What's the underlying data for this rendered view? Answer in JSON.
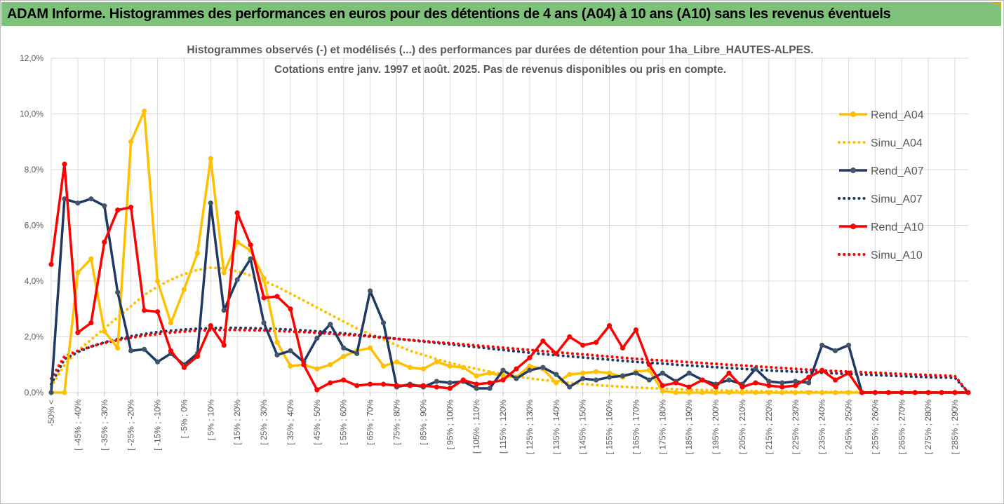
{
  "banner": {
    "title": "ADAM Informe. Histogrammes des performances en euros pour des détentions de 4 ans (A04) à 10 ans (A10) sans les revenus éventuels"
  },
  "colors": {
    "banner_bg": "#7ec17a",
    "A04": "#ffc000",
    "A07": "#1f3864",
    "A07_marker": "#44546a",
    "A10": "#ff0000",
    "grid": "#d9d9d9",
    "text": "#595959"
  },
  "chart_data": {
    "type": "line",
    "title": "Histogrammes observés (-) et modélisés (...) des performances par durées de détention pour 1ha_Libre_HAUTES-ALPES.",
    "subtitle": "Cotations entre janv. 1997 et août. 2025. Pas de revenus disponibles ou pris en compte.",
    "y_ticks": [
      "0,0%",
      "2,0%",
      "4,0%",
      "6,0%",
      "8,0%",
      "10,0%",
      "12,0%"
    ],
    "ylim": [
      0,
      12
    ],
    "grid": true,
    "legend_position": "right",
    "x_tick_labels": [
      "-50% <",
      "[ -45% ; -40%",
      "[ -35% ; -30%",
      "[ -25% ; -20%",
      "[ -15% ; -10%",
      "[ -5% ; 0%",
      "[ 5% ; 10%",
      "[ 15% ; 20%",
      "[ 25% ; 30%",
      "[ 35% ; 40%",
      "[ 45% ; 50%",
      "[ 55% ; 60%",
      "[ 65% ; 70%",
      "[ 75% ; 80%",
      "[ 85% ; 90%",
      "[ 95% ; 100%",
      "[ 105% ; 110%",
      "[ 115% ; 120%",
      "[ 125% ; 130%",
      "[ 135% ; 140%",
      "[ 145% ; 150%",
      "[ 155% ; 160%",
      "[ 165% ; 170%",
      "[ 175% ; 180%",
      "[ 185% ; 190%",
      "[ 195% ; 200%",
      "[ 205% ; 210%",
      "[ 215% ; 220%",
      "[ 225% ; 230%",
      "[ 235% ; 240%",
      "[ 245% ; 250%",
      "[ 255% ; 260%",
      "[ 265% ; 270%",
      "[ 275% ; 280%",
      "[ 285% ; 290%"
    ],
    "n_categories": 70,
    "series": [
      {
        "name": "Rend_A04",
        "style": "solid",
        "color": "#ffc000",
        "values": [
          0,
          0,
          4.3,
          4.8,
          2.2,
          1.6,
          9.0,
          10.1,
          4.0,
          2.5,
          3.7,
          5.0,
          8.4,
          4.3,
          5.4,
          5.1,
          4.1,
          1.8,
          0.95,
          1.0,
          0.85,
          1.0,
          1.3,
          1.5,
          1.6,
          0.95,
          1.1,
          0.9,
          0.85,
          1.1,
          0.95,
          0.9,
          0.6,
          0.7,
          0.6,
          0.55,
          0.95,
          0.85,
          0.35,
          0.65,
          0.7,
          0.75,
          0.7,
          0.55,
          0.75,
          0.8,
          0.05,
          0,
          0,
          0,
          0,
          0,
          0,
          0,
          0,
          0,
          0,
          0,
          0,
          0,
          0,
          0,
          0,
          0,
          0,
          0,
          0,
          0,
          0,
          0
        ]
      },
      {
        "name": "Simu_A04",
        "style": "dotted",
        "color": "#ffc000",
        "values": [
          0.2,
          1.0,
          1.5,
          1.9,
          2.3,
          2.7,
          3.1,
          3.5,
          3.8,
          4.05,
          4.25,
          4.4,
          4.48,
          4.45,
          4.35,
          4.2,
          4.0,
          3.8,
          3.55,
          3.3,
          3.05,
          2.8,
          2.55,
          2.3,
          2.1,
          1.9,
          1.7,
          1.5,
          1.35,
          1.2,
          1.07,
          0.95,
          0.85,
          0.75,
          0.66,
          0.58,
          0.51,
          0.45,
          0.4,
          0.35,
          0.31,
          0.27,
          0.24,
          0.21,
          0.18,
          0.16,
          0.14,
          0.12,
          0.1,
          0.09,
          0.08,
          0.07,
          0.06,
          0.05,
          0.04,
          0.04,
          0.03,
          0.03,
          0.02,
          0.02,
          0.02,
          0.01,
          0.01,
          0.01,
          0.01,
          0.01,
          0.01,
          0.01,
          0.01,
          0
        ]
      },
      {
        "name": "Rend_A07",
        "style": "solid",
        "color": "#1f3864",
        "values": [
          0,
          6.95,
          6.8,
          6.95,
          6.7,
          3.6,
          1.5,
          1.55,
          1.1,
          1.4,
          1.0,
          1.4,
          6.8,
          2.95,
          4.05,
          4.8,
          2.5,
          1.35,
          1.5,
          1.1,
          1.95,
          2.45,
          1.6,
          1.4,
          3.65,
          2.5,
          0.2,
          0.3,
          0.2,
          0.4,
          0.35,
          0.4,
          0.15,
          0.15,
          0.8,
          0.5,
          0.8,
          0.9,
          0.65,
          0.2,
          0.5,
          0.45,
          0.55,
          0.6,
          0.7,
          0.45,
          0.7,
          0.4,
          0.7,
          0.45,
          0.3,
          0.45,
          0.3,
          0.85,
          0.4,
          0.35,
          0.4,
          0.35,
          1.7,
          1.5,
          1.7,
          0,
          0,
          0,
          0,
          0,
          0,
          0,
          0,
          0
        ]
      },
      {
        "name": "Simu_A07",
        "style": "dotted",
        "color": "#1f3864",
        "values": [
          0.3,
          1.2,
          1.45,
          1.65,
          1.8,
          1.92,
          2.02,
          2.1,
          2.17,
          2.22,
          2.26,
          2.29,
          2.31,
          2.32,
          2.32,
          2.31,
          2.3,
          2.28,
          2.26,
          2.23,
          2.2,
          2.16,
          2.12,
          2.08,
          2.03,
          1.98,
          1.93,
          1.88,
          1.83,
          1.78,
          1.73,
          1.68,
          1.63,
          1.58,
          1.53,
          1.48,
          1.43,
          1.38,
          1.34,
          1.3,
          1.26,
          1.22,
          1.18,
          1.14,
          1.1,
          1.07,
          1.04,
          1.0,
          0.97,
          0.94,
          0.91,
          0.88,
          0.85,
          0.82,
          0.79,
          0.77,
          0.75,
          0.73,
          0.71,
          0.69,
          0.67,
          0.65,
          0.63,
          0.61,
          0.59,
          0.57,
          0.55,
          0.54,
          0.53,
          0
        ]
      },
      {
        "name": "Rend_A10",
        "style": "solid",
        "color": "#ff0000",
        "values": [
          4.6,
          8.2,
          2.15,
          2.5,
          5.4,
          6.55,
          6.65,
          2.95,
          2.9,
          1.5,
          0.9,
          1.3,
          2.4,
          1.7,
          6.45,
          5.3,
          3.4,
          3.45,
          3.0,
          1.0,
          0.1,
          0.35,
          0.45,
          0.25,
          0.3,
          0.3,
          0.25,
          0.25,
          0.25,
          0.2,
          0.15,
          0.45,
          0.3,
          0.35,
          0.45,
          0.85,
          1.25,
          1.85,
          1.4,
          2.0,
          1.7,
          1.8,
          2.4,
          1.6,
          2.25,
          1.0,
          0.25,
          0.35,
          0.2,
          0.45,
          0.2,
          0.7,
          0.2,
          0.35,
          0.25,
          0.2,
          0.25,
          0.55,
          0.8,
          0.45,
          0.7,
          0,
          0,
          0,
          0,
          0,
          0,
          0,
          0,
          0
        ]
      },
      {
        "name": "Simu_A10",
        "style": "dotted",
        "color": "#ff0000",
        "values": [
          0.5,
          1.3,
          1.5,
          1.65,
          1.78,
          1.88,
          1.97,
          2.04,
          2.1,
          2.15,
          2.19,
          2.22,
          2.24,
          2.25,
          2.25,
          2.24,
          2.23,
          2.21,
          2.19,
          2.17,
          2.14,
          2.11,
          2.08,
          2.05,
          2.01,
          1.97,
          1.93,
          1.89,
          1.85,
          1.81,
          1.77,
          1.73,
          1.69,
          1.65,
          1.61,
          1.57,
          1.53,
          1.49,
          1.45,
          1.41,
          1.37,
          1.33,
          1.29,
          1.25,
          1.21,
          1.18,
          1.15,
          1.12,
          1.09,
          1.06,
          1.03,
          1.0,
          0.97,
          0.94,
          0.91,
          0.88,
          0.85,
          0.82,
          0.79,
          0.77,
          0.75,
          0.73,
          0.71,
          0.69,
          0.67,
          0.65,
          0.63,
          0.61,
          0.59,
          0
        ]
      }
    ]
  }
}
